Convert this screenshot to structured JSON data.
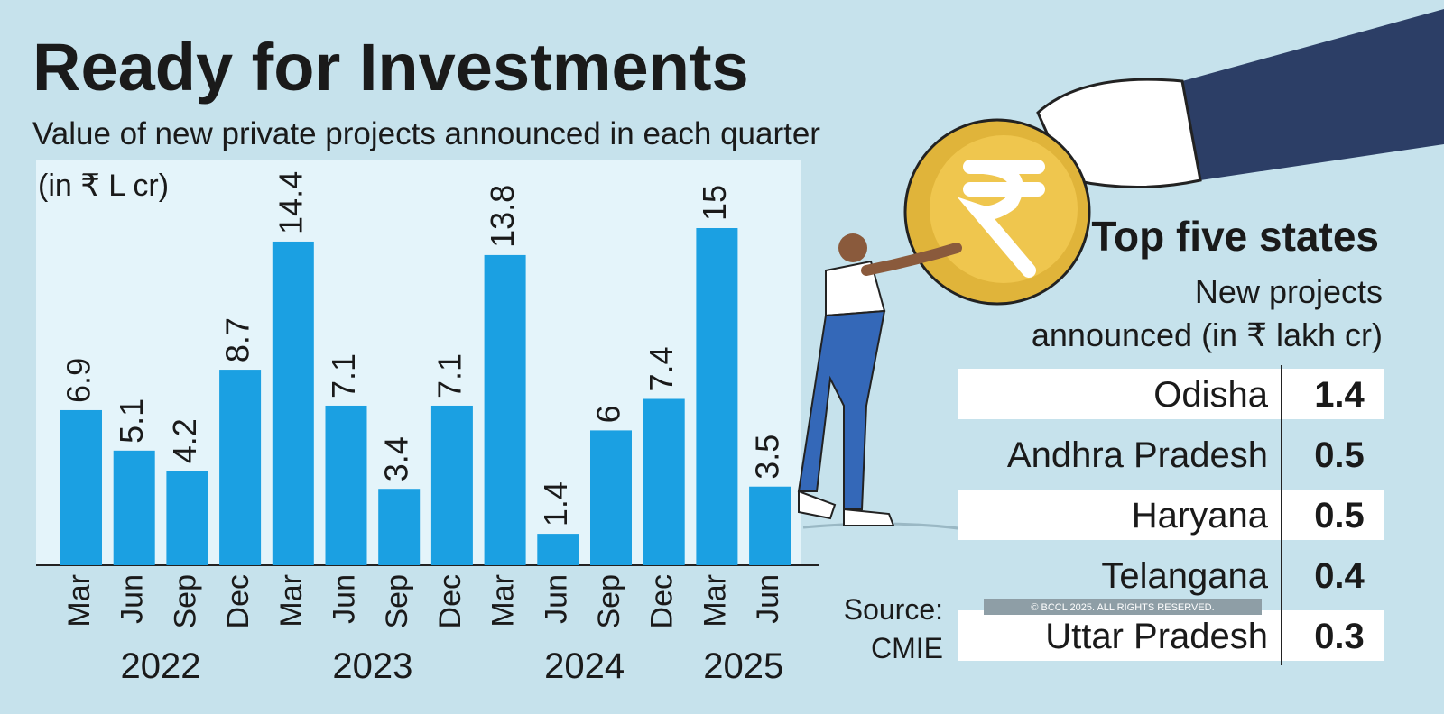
{
  "chart_data": {
    "type": "bar",
    "title": "Ready for Investments",
    "subtitle": "Value of new private projects announced in each quarter",
    "unit": "(in ₹ L cr)",
    "color": "#1ba0e2",
    "groups": [
      {
        "name": "2022",
        "categories": [
          "Mar",
          "Jun",
          "Sep",
          "Dec"
        ],
        "values": [
          6.9,
          5.1,
          4.2,
          8.7
        ]
      },
      {
        "name": "2023",
        "categories": [
          "Mar",
          "Jun",
          "Sep",
          "Dec"
        ],
        "values": [
          14.4,
          7.1,
          3.4,
          7.1
        ]
      },
      {
        "name": "2024",
        "categories": [
          "Mar",
          "Jun",
          "Sep",
          "Dec"
        ],
        "values": [
          13.8,
          1.4,
          6,
          7.4
        ]
      },
      {
        "name": "2025",
        "categories": [
          "Mar",
          "Jun"
        ],
        "values": [
          15,
          3.5
        ]
      }
    ]
  },
  "table": {
    "title": "Top five states",
    "subtitle": [
      "New projects",
      "announced (in ₹ lakh cr)"
    ],
    "rows": [
      [
        "Odisha",
        "1.4"
      ],
      [
        "Andhra Pradesh",
        "0.5"
      ],
      [
        "Haryana",
        "0.5"
      ],
      [
        "Telangana",
        "0.4"
      ],
      [
        "Uttar Pradesh",
        "0.3"
      ]
    ]
  },
  "source": [
    "Source:",
    "CMIE"
  ],
  "copyright": "© BCCL 2025. ALL RIGHTS RESERVED."
}
